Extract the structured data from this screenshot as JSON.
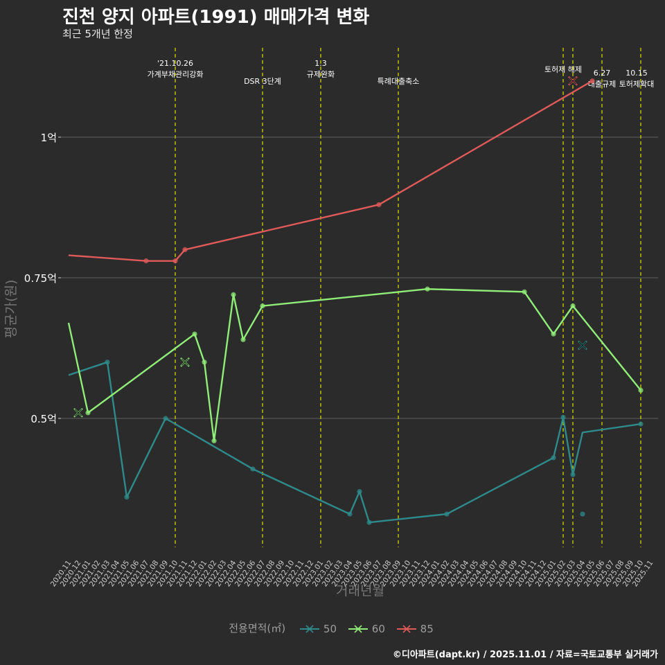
{
  "title": "진천 양지 아파트(1991) 매매가격 변화",
  "subtitle": "최근 5개년 한정",
  "caption": "©디아파트(dapt.kr) / 2025.11.01 / 자료=국토교통부 실거래가",
  "colors": {
    "background": "#2b2b2b",
    "s50": "#2e8b8b",
    "s60": "#90ee78",
    "s85": "#e05a5a",
    "event": "#d4d400",
    "grid": "#555555"
  },
  "chart_data": {
    "type": "line",
    "title": "진천 양지 아파트(1991) 매매가격 변화",
    "subtitle": "최근 5개년 한정",
    "xlabel": "거래년월",
    "ylabel": "평균가(원)",
    "y_ticks": [
      {
        "value": 0.5,
        "label": "0.5억"
      },
      {
        "value": 0.75,
        "label": "0.75억"
      },
      {
        "value": 1.0,
        "label": "1억"
      }
    ],
    "x_ticks": [
      "2020.11",
      "2020.12",
      "2021.01",
      "2021.02",
      "2021.03",
      "2021.04",
      "2021.05",
      "2021.06",
      "2021.07",
      "2021.08",
      "2021.09",
      "2021.10",
      "2021.11",
      "2021.12",
      "2022.01",
      "2022.02",
      "2022.03",
      "2022.04",
      "2022.05",
      "2022.06",
      "2022.07",
      "2022.08",
      "2022.09",
      "2022.10",
      "2022.11",
      "2022.12",
      "2023.01",
      "2023.02",
      "2023.03",
      "2023.04",
      "2023.05",
      "2023.06",
      "2023.07",
      "2023.08",
      "2023.09",
      "2023.10",
      "2023.11",
      "2023.12",
      "2024.01",
      "2024.02",
      "2024.03",
      "2024.04",
      "2024.05",
      "2024.06",
      "2024.07",
      "2024.08",
      "2024.09",
      "2024.10",
      "2024.11",
      "2024.12",
      "2025.01",
      "2025.02",
      "2025.03",
      "2025.04",
      "2025.05",
      "2025.06",
      "2025.07",
      "2025.08",
      "2025.09",
      "2025.10",
      "2025.11"
    ],
    "legend_title": "전용면적(㎡)",
    "series": [
      {
        "name": "50",
        "color": "#2e8b8b",
        "line": [
          [
            0,
            0.577
          ],
          [
            4,
            0.6
          ],
          [
            6,
            0.36
          ],
          [
            10,
            0.5
          ],
          [
            19,
            0.41
          ],
          [
            29,
            0.33
          ],
          [
            30,
            0.37
          ],
          [
            31,
            0.315
          ],
          [
            39,
            0.33
          ],
          [
            50,
            0.43
          ],
          [
            51,
            0.502
          ],
          [
            52,
            0.4
          ],
          [
            53,
            0.475
          ],
          [
            59,
            0.49
          ]
        ],
        "points": [
          [
            4,
            0.6
          ],
          [
            6,
            0.36
          ],
          [
            10,
            0.5
          ],
          [
            19,
            0.41
          ],
          [
            29,
            0.33
          ],
          [
            30,
            0.37
          ],
          [
            31,
            0.315
          ],
          [
            39,
            0.33
          ],
          [
            50,
            0.43
          ],
          [
            51,
            0.502
          ],
          [
            52,
            0.4
          ],
          [
            59,
            0.49
          ]
        ],
        "extra_points": [
          [
            53,
            0.33
          ]
        ],
        "cancelled": [
          [
            53,
            0.63
          ]
        ]
      },
      {
        "name": "60",
        "color": "#90ee78",
        "line": [
          [
            0,
            0.67
          ],
          [
            2,
            0.51
          ],
          [
            13,
            0.65
          ],
          [
            14,
            0.6
          ],
          [
            15,
            0.46
          ],
          [
            17,
            0.72
          ],
          [
            18,
            0.64
          ],
          [
            20,
            0.7
          ],
          [
            37,
            0.73
          ],
          [
            47,
            0.725
          ],
          [
            50,
            0.65
          ],
          [
            52,
            0.7
          ],
          [
            59,
            0.55
          ]
        ],
        "points": [
          [
            2,
            0.51
          ],
          [
            13,
            0.65
          ],
          [
            14,
            0.6
          ],
          [
            15,
            0.46
          ],
          [
            17,
            0.72
          ],
          [
            18,
            0.64
          ],
          [
            20,
            0.7
          ],
          [
            37,
            0.73
          ],
          [
            47,
            0.725
          ],
          [
            50,
            0.65
          ],
          [
            52,
            0.7
          ],
          [
            59,
            0.55
          ]
        ],
        "extra_points": [],
        "cancelled": [
          [
            1,
            0.51
          ],
          [
            12,
            0.6
          ]
        ]
      },
      {
        "name": "85",
        "color": "#e05a5a",
        "line": [
          [
            0,
            0.79
          ],
          [
            8,
            0.78
          ],
          [
            11,
            0.78
          ],
          [
            12,
            0.8
          ],
          [
            32,
            0.88
          ],
          [
            54,
            1.1
          ]
        ],
        "points": [
          [
            8,
            0.78
          ],
          [
            11,
            0.78
          ],
          [
            12,
            0.8
          ],
          [
            32,
            0.88
          ],
          [
            54,
            1.1
          ]
        ],
        "extra_points": [],
        "cancelled": [
          [
            52,
            1.1
          ]
        ]
      }
    ],
    "events": [
      {
        "x": 11,
        "lines": [
          "'21.10.26",
          "가계부채관리강화"
        ]
      },
      {
        "x": 20,
        "lines": [
          "DSR 3단계"
        ]
      },
      {
        "x": 26,
        "lines": [
          "1.3",
          "규제완화"
        ]
      },
      {
        "x": 34,
        "lines": [
          "특례대출축소"
        ]
      },
      {
        "x": 51,
        "lines": [
          "토허제 해제"
        ]
      },
      {
        "x": 52,
        "lines": []
      },
      {
        "x": 55,
        "lines": [
          "6.27",
          "대출규제"
        ]
      },
      {
        "x": 59,
        "lines": [
          "10.15",
          "토허제확대"
        ]
      }
    ]
  }
}
